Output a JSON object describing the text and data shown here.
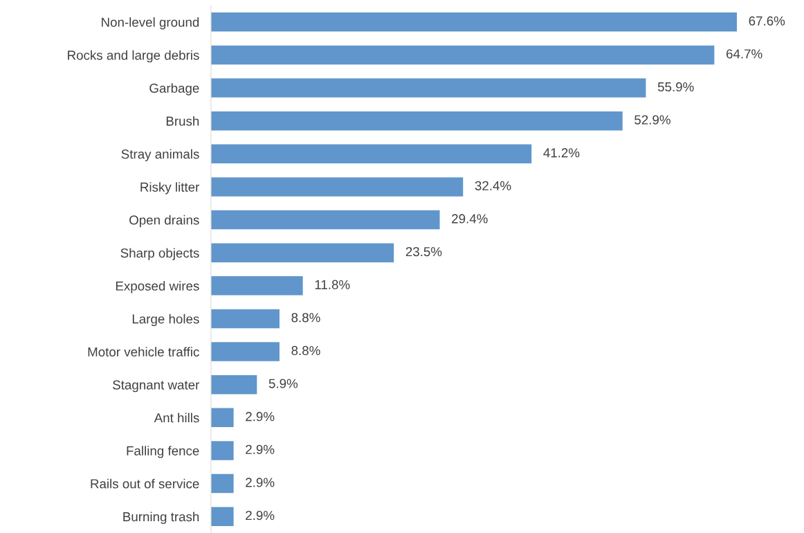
{
  "chart_data": {
    "type": "bar",
    "orientation": "horizontal",
    "categories": [
      "Non-level ground",
      "Rocks and large debris",
      "Garbage",
      "Brush",
      "Stray animals",
      "Risky litter",
      "Open drains",
      "Sharp objects",
      "Exposed wires",
      "Large holes",
      "Motor vehicle traffic",
      "Stagnant water",
      "Ant hills",
      "Falling fence",
      "Rails out of service",
      "Burning trash"
    ],
    "values": [
      67.6,
      64.7,
      55.9,
      52.9,
      41.2,
      32.4,
      29.4,
      23.5,
      11.8,
      8.8,
      8.8,
      5.9,
      2.9,
      2.9,
      2.9,
      2.9
    ],
    "value_labels": [
      "67.6%",
      "64.7%",
      "55.9%",
      "52.9%",
      "41.2%",
      "32.4%",
      "29.4%",
      "23.5%",
      "11.8%",
      "8.8%",
      "8.8%",
      "5.9%",
      "2.9%",
      "2.9%",
      "2.9%",
      "2.9%"
    ],
    "color": "#6096cb",
    "tick_labels": "y",
    "grid": false,
    "legend": false
  }
}
